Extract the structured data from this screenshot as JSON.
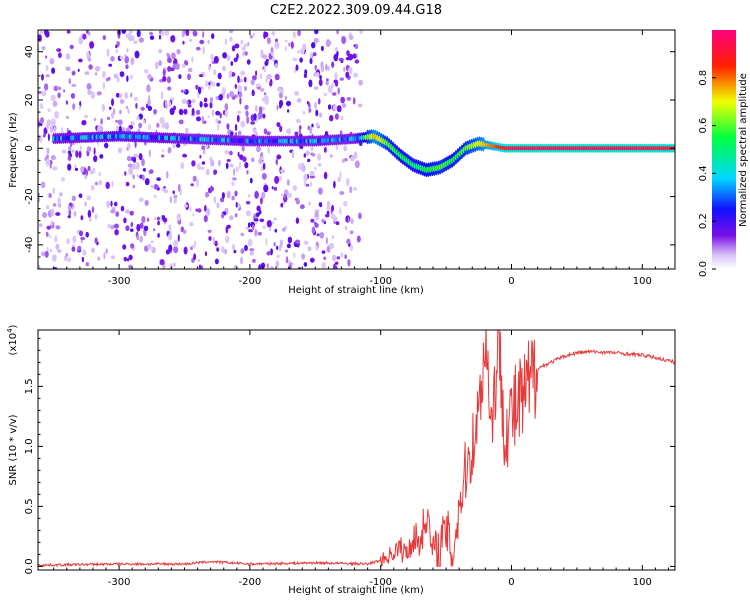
{
  "title": "C2E2.2022.309.09.44.G18",
  "chart_data": [
    {
      "type": "heatmap",
      "xlabel": "Height of straight line (km)",
      "ylabel": "Frequency (Hz)",
      "xlim": [
        -362,
        125
      ],
      "ylim": [
        -50,
        49
      ],
      "xticks": [
        -300,
        -200,
        -100,
        0,
        100
      ],
      "yticks": [
        -40,
        -20,
        0,
        20,
        40
      ],
      "colorbar": {
        "label": "Normalized spectral amplitude",
        "ticks": [
          "0.0",
          "0.2",
          "0.4",
          "0.6",
          "0.8"
        ],
        "range": [
          0,
          1
        ],
        "colormap": "rainbow (white-purple-blue-cyan-green-yellow-red-magenta)"
      },
      "grid": false,
      "ridge": {
        "height_km": [
          -350,
          -300,
          -250,
          -200,
          -150,
          -120,
          -105,
          -95,
          -85,
          -75,
          -65,
          -55,
          -45,
          -35,
          -25,
          -15,
          -5,
          0,
          50,
          100,
          125
        ],
        "frequency_hz": [
          4,
          5,
          4,
          3,
          3,
          4,
          5,
          2,
          -3,
          -7,
          -9,
          -8,
          -5,
          0,
          2,
          1,
          0,
          0,
          0,
          0,
          0
        ],
        "amplitude": [
          0.3,
          0.35,
          0.3,
          0.3,
          0.3,
          0.3,
          0.75,
          0.6,
          0.55,
          0.5,
          0.55,
          0.6,
          0.55,
          0.6,
          0.7,
          0.8,
          0.9,
          0.95,
          0.95,
          0.95,
          0.9
        ]
      },
      "noise_region_km": [
        -362,
        -115
      ]
    },
    {
      "type": "line",
      "xlabel": "Height of straight line (km)",
      "ylabel": "SNR (10 * v/v)",
      "yscale_label": "(x10",
      "yscale_exponent": "4",
      "xlim": [
        -362,
        125
      ],
      "ylim": [
        -0.03,
        1.97
      ],
      "xticks": [
        -300,
        -200,
        -100,
        0,
        100
      ],
      "yticks": [
        "0.0",
        "0.5",
        "1.0",
        "1.5"
      ],
      "grid": false,
      "series": [
        {
          "color": "#e83a3a",
          "x": [
            -362,
            -300,
            -250,
            -230,
            -200,
            -150,
            -110,
            -100,
            -95,
            -90,
            -85,
            -80,
            -75,
            -70,
            -65,
            -60,
            -55,
            -50,
            -45,
            -40,
            -35,
            -30,
            -25,
            -20,
            -15,
            -10,
            -5,
            0,
            10,
            20,
            30,
            40,
            50,
            60,
            80,
            100,
            110,
            125
          ],
          "y": [
            0.01,
            0.02,
            0.02,
            0.04,
            0.02,
            0.03,
            0.02,
            0.05,
            0.08,
            0.12,
            0.15,
            0.1,
            0.25,
            0.2,
            0.45,
            0.1,
            0.15,
            0.3,
            0.1,
            0.5,
            0.8,
            1.0,
            1.3,
            1.9,
            1.2,
            1.85,
            1.15,
            1.25,
            1.4,
            1.65,
            1.7,
            1.75,
            1.78,
            1.79,
            1.78,
            1.76,
            1.74,
            1.7
          ]
        }
      ]
    }
  ]
}
